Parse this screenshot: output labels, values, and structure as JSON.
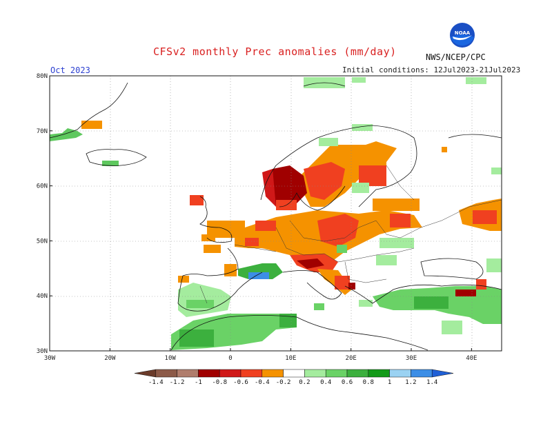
{
  "title": "CFSv2 monthly Prec anomalies (mm/day)",
  "month": "Oct 2023",
  "initial_conditions": "Initial conditions: 12Jul2023-21Jul2023",
  "agency": "NWS/NCEP/CPC",
  "logo_text": "NOAA",
  "map": {
    "lon_range": [
      -30,
      45
    ],
    "lat_range": [
      30,
      80
    ],
    "lat_ticks": [
      "80N",
      "70N",
      "60N",
      "50N",
      "40N",
      "30N"
    ],
    "lon_ticks": [
      "30W",
      "20W",
      "10W",
      "0",
      "10E",
      "20E",
      "30E",
      "40E"
    ]
  },
  "colorbar": {
    "labels": [
      "-1.4",
      "-1.2",
      "-1",
      "-0.8",
      "-0.6",
      "-0.4",
      "-0.2",
      "0.2",
      "0.4",
      "0.6",
      "0.8",
      "1",
      "1.2",
      "1.4"
    ],
    "colors": [
      "#6b3b2a",
      "#8c5a48",
      "#b07d6c",
      "#a00000",
      "#d01818",
      "#f04020",
      "#f59200",
      "#ffffff",
      "#a4ec9e",
      "#6ad266",
      "#3cb03e",
      "#129a18",
      "#9ad2f2",
      "#3c8ee6",
      "#2060d6"
    ]
  }
}
